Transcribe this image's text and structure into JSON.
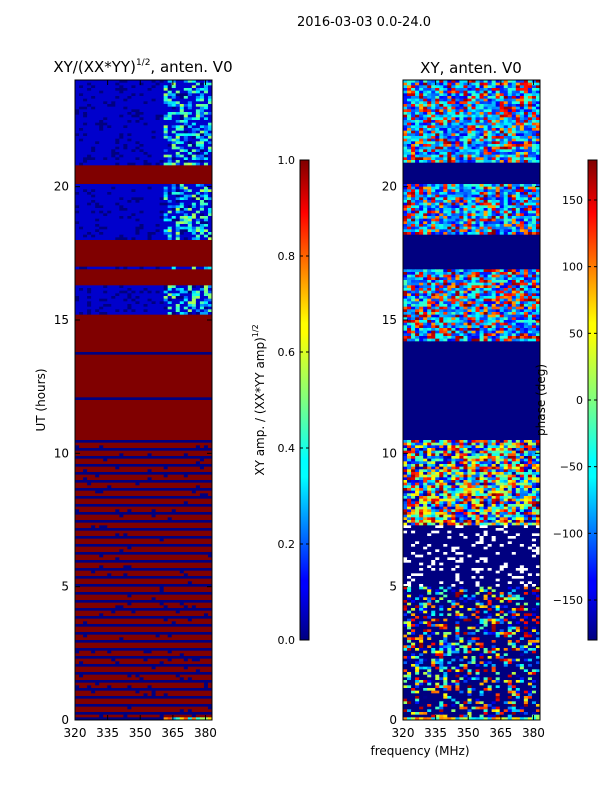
{
  "suptitle": "2016-03-03 0.0-24.0",
  "shared": {
    "xlabel": "frequency (MHz)",
    "ylabel": "UT (hours)"
  },
  "chart_data": [
    {
      "type": "heatmap",
      "id": "amp",
      "title": "XY/(XX*YY)^{1/2}, anten. V0",
      "title_main": "XY/(XX*YY)",
      "title_sup": "1/2",
      "title_tail": ", anten. V0",
      "x_ticks": [
        320,
        335,
        350,
        365,
        380
      ],
      "xlim": [
        320,
        383
      ],
      "y_ticks": [
        0,
        5,
        10,
        15,
        20
      ],
      "ylim": [
        0,
        24
      ],
      "colorbar": {
        "label": "XY amp. / (XX*YY amp)^{1/2}",
        "label_main": "XY amp. / (XX*YY amp)",
        "label_sup": "1/2",
        "ticks": [
          "0.0",
          "0.2",
          "0.4",
          "0.6",
          "0.8",
          "1.0"
        ],
        "tick_values": [
          0,
          0.2,
          0.4,
          0.6,
          0.8,
          1.0
        ],
        "vmin": 0,
        "vmax": 1,
        "colormap": "jet"
      }
    },
    {
      "type": "heatmap",
      "id": "phase",
      "title": "XY, anten. V0",
      "x_ticks": [
        320,
        335,
        350,
        365,
        380
      ],
      "xlim": [
        320,
        383
      ],
      "y_ticks": [
        0,
        5,
        10,
        15,
        20
      ],
      "ylim": [
        0,
        24
      ],
      "colorbar": {
        "label": "phase (deg)",
        "ticks": [
          "−150",
          "−100",
          "−50",
          "0",
          "50",
          "100",
          "150"
        ],
        "tick_values": [
          -150,
          -100,
          -50,
          0,
          50,
          100,
          150
        ],
        "vmin": -180,
        "vmax": 180,
        "colormap": "jet"
      }
    }
  ]
}
